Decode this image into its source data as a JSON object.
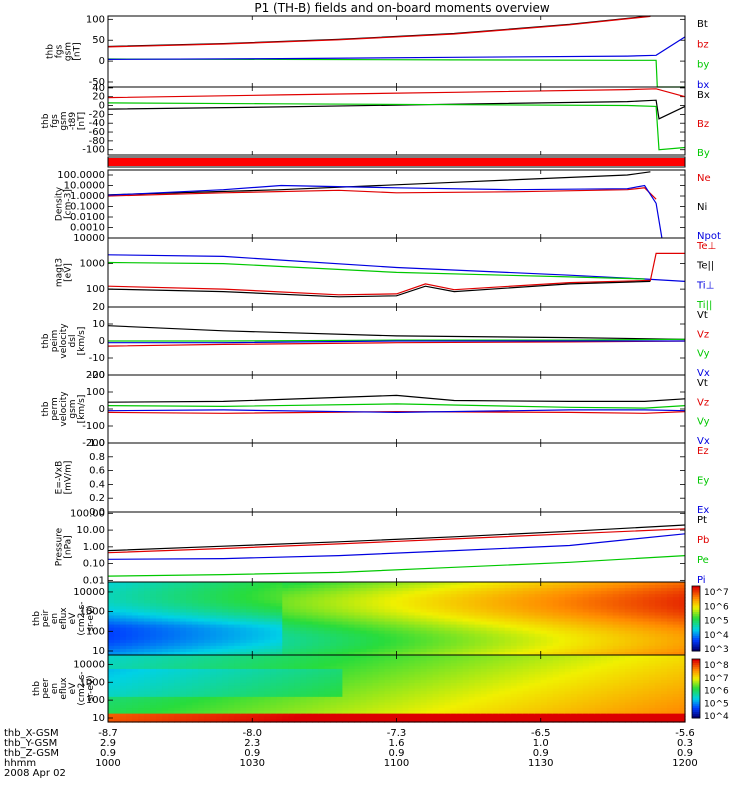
{
  "title": "P1 (TH-B) fields and on-board moments overview",
  "colors": {
    "black": "#000000",
    "red": "#e00000",
    "green": "#00c800",
    "blue": "#0000e0"
  },
  "chart_data": [
    {
      "type": "line",
      "ylabel": [
        "thb",
        "fgs",
        "gsm",
        "[nT]"
      ],
      "yticks": [
        100,
        50,
        0,
        -50
      ],
      "ylim": [
        -62,
        108
      ],
      "legend": [
        {
          "label": "Bt",
          "color": "black"
        },
        {
          "label": "bz",
          "color": "red"
        },
        {
          "label": "by",
          "color": "green"
        },
        {
          "label": "bx",
          "color": "blue"
        }
      ],
      "series": [
        {
          "name": "Bt",
          "color": "black",
          "x": [
            0,
            0.2,
            0.4,
            0.6,
            0.8,
            0.94
          ],
          "y": [
            35,
            42,
            52,
            66,
            88,
            108
          ]
        },
        {
          "name": "bz",
          "color": "red",
          "x": [
            0,
            0.2,
            0.4,
            0.6,
            0.8,
            0.94
          ],
          "y": [
            34,
            41,
            51,
            65,
            87,
            107
          ]
        },
        {
          "name": "by",
          "color": "green",
          "x": [
            0,
            0.3,
            0.6,
            0.9,
            0.95,
            0.952,
            1.0
          ],
          "y": [
            5,
            4,
            3,
            2,
            2,
            -62,
            -62
          ]
        },
        {
          "name": "bx",
          "color": "blue",
          "x": [
            0,
            0.3,
            0.6,
            0.9,
            0.95,
            1.0
          ],
          "y": [
            4,
            6,
            9,
            12,
            14,
            58
          ]
        }
      ]
    },
    {
      "type": "line",
      "ylabel": [
        "thb",
        "fgs",
        "gsm",
        "-t89",
        "[nT]"
      ],
      "yticks": [
        40,
        20,
        0,
        -20,
        -40,
        -60,
        -80,
        -100
      ],
      "ylim": [
        -112,
        42
      ],
      "legend": [
        {
          "label": "Bx",
          "color": "black"
        },
        {
          "label": "Bz",
          "color": "red"
        },
        {
          "label": "By",
          "color": "green"
        }
      ],
      "series": [
        {
          "name": "Bx",
          "color": "black",
          "x": [
            0,
            0.3,
            0.6,
            0.9,
            0.95,
            0.955,
            1.0
          ],
          "y": [
            -8,
            -3,
            3,
            9,
            12,
            -30,
            -2
          ]
        },
        {
          "name": "Bz",
          "color": "red",
          "x": [
            0,
            0.3,
            0.6,
            0.9,
            0.95,
            1.0
          ],
          "y": [
            18,
            24,
            30,
            36,
            38,
            20
          ]
        },
        {
          "name": "By",
          "color": "green",
          "x": [
            0,
            0.3,
            0.6,
            0.9,
            0.95,
            0.955,
            1.0
          ],
          "y": [
            6,
            4,
            2,
            0,
            -2,
            -100,
            -95
          ]
        }
      ]
    },
    {
      "type": "line",
      "ylabel": [
        "Density",
        "[cm-3]"
      ],
      "log": true,
      "yticks": [
        "100.0000",
        "10.0000",
        "1.0000",
        "0.1000",
        "0.0100",
        "0.0010"
      ],
      "ylim": [
        0.0001,
        300
      ],
      "legend": [
        {
          "label": "Ne",
          "color": "red"
        },
        {
          "label": "Ni",
          "color": "black"
        },
        {
          "label": "Npot",
          "color": "blue"
        }
      ],
      "series": [
        {
          "name": "Ni",
          "color": "black",
          "x": [
            0,
            0.3,
            0.6,
            0.9,
            0.94
          ],
          "y": [
            1.3,
            4,
            20,
            100,
            200
          ]
        },
        {
          "name": "Ne",
          "color": "red",
          "x": [
            0,
            0.2,
            0.4,
            0.5,
            0.7,
            0.9,
            0.93,
            0.95
          ],
          "y": [
            1.0,
            2.0,
            3.5,
            2.0,
            2.5,
            4.0,
            6.0,
            0.5
          ]
        },
        {
          "name": "Npot",
          "color": "blue",
          "x": [
            0,
            0.2,
            0.3,
            0.5,
            0.7,
            0.9,
            0.93,
            0.95,
            0.96
          ],
          "y": [
            1.2,
            4,
            10,
            6,
            4,
            5,
            10,
            0.2,
            0.0001
          ]
        }
      ]
    },
    {
      "type": "line",
      "ylabel": [
        "magt3",
        "[eV]"
      ],
      "log": true,
      "yticks": [
        "10000",
        "1000",
        "100"
      ],
      "ylim": [
        20,
        10000
      ],
      "legend": [
        {
          "label": "Te⊥",
          "color": "red"
        },
        {
          "label": "Te||",
          "color": "black"
        },
        {
          "label": "Ti⊥",
          "color": "blue"
        },
        {
          "label": "Ti||",
          "color": "green"
        }
      ],
      "series": [
        {
          "name": "Ti⊥",
          "color": "blue",
          "x": [
            0,
            0.2,
            0.5,
            0.8,
            0.93,
            1.0
          ],
          "y": [
            2200,
            1900,
            700,
            350,
            250,
            200
          ]
        },
        {
          "name": "Ti||",
          "color": "green",
          "x": [
            0,
            0.2,
            0.5,
            0.8,
            0.93
          ],
          "y": [
            1100,
            1000,
            450,
            300,
            250
          ]
        },
        {
          "name": "Te⊥",
          "color": "red",
          "x": [
            0,
            0.2,
            0.4,
            0.5,
            0.55,
            0.6,
            0.8,
            0.94,
            0.95,
            1.0
          ],
          "y": [
            130,
            100,
            60,
            65,
            160,
            95,
            180,
            220,
            2500,
            2500
          ]
        },
        {
          "name": "Te||",
          "color": "black",
          "x": [
            0,
            0.2,
            0.4,
            0.5,
            0.55,
            0.6,
            0.8,
            0.94
          ],
          "y": [
            100,
            80,
            50,
            55,
            130,
            80,
            160,
            200
          ]
        }
      ]
    },
    {
      "type": "line",
      "ylabel": [
        "thb",
        "peim",
        "velocity",
        "dsl",
        "[km/s]"
      ],
      "yticks": [
        20,
        10,
        0,
        -10,
        -20
      ],
      "ylim": [
        -20,
        20
      ],
      "legend": [
        {
          "label": "Vt",
          "color": "black"
        },
        {
          "label": "Vz",
          "color": "red"
        },
        {
          "label": "Vy",
          "color": "green"
        },
        {
          "label": "Vx",
          "color": "blue"
        }
      ],
      "series": [
        {
          "name": "Vt",
          "color": "black",
          "x": [
            0,
            0.2,
            0.5,
            0.8,
            1.0
          ],
          "y": [
            9,
            6,
            3,
            2,
            1
          ]
        },
        {
          "name": "Vz",
          "color": "red",
          "x": [
            0,
            0.2,
            0.5,
            0.8,
            1.0
          ],
          "y": [
            -3,
            -2,
            -1,
            -0.5,
            0
          ]
        },
        {
          "name": "Vy",
          "color": "green",
          "x": [
            0,
            0.2,
            0.5,
            0.8,
            1.0
          ],
          "y": [
            0,
            0,
            0.5,
            0.5,
            1
          ]
        },
        {
          "name": "Vx",
          "color": "blue",
          "x": [
            0,
            0.2,
            0.5,
            0.8,
            1.0
          ],
          "y": [
            -1,
            -1,
            0,
            0,
            0
          ]
        }
      ]
    },
    {
      "type": "line",
      "ylabel": [
        "thb",
        "perm",
        "velocity",
        "gsm",
        "[km/s]"
      ],
      "yticks": [
        200,
        100,
        0,
        -100,
        -200
      ],
      "ylim": [
        -200,
        200
      ],
      "legend": [
        {
          "label": "Vt",
          "color": "black"
        },
        {
          "label": "Vz",
          "color": "red"
        },
        {
          "label": "Vy",
          "color": "green"
        },
        {
          "label": "Vx",
          "color": "blue"
        }
      ],
      "series": [
        {
          "name": "Vt",
          "color": "black",
          "x": [
            0,
            0.2,
            0.5,
            0.6,
            0.8,
            0.93,
            1.0
          ],
          "y": [
            40,
            45,
            80,
            50,
            45,
            45,
            60
          ]
        },
        {
          "name": "Vz",
          "color": "red",
          "x": [
            0,
            0.2,
            0.5,
            0.8,
            0.93,
            1.0
          ],
          "y": [
            -20,
            -25,
            -15,
            -20,
            -25,
            -15
          ]
        },
        {
          "name": "Vy",
          "color": "green",
          "x": [
            0,
            0.2,
            0.5,
            0.8,
            0.93,
            1.0
          ],
          "y": [
            20,
            15,
            30,
            10,
            5,
            20
          ]
        },
        {
          "name": "Vx",
          "color": "blue",
          "x": [
            0,
            0.2,
            0.5,
            0.8,
            0.93,
            1.0
          ],
          "y": [
            -10,
            -5,
            -20,
            -5,
            -5,
            -10
          ]
        }
      ]
    },
    {
      "type": "line",
      "ylabel": [
        "E=-VxB",
        "[mV/m]"
      ],
      "yticks": [
        "1.0",
        "0.8",
        "0.6",
        "0.4",
        "0.2",
        "0.0"
      ],
      "ylim": [
        0,
        1
      ],
      "legend": [
        {
          "label": "Ez",
          "color": "red"
        },
        {
          "label": "Ey",
          "color": "green"
        },
        {
          "label": "Ex",
          "color": "blue"
        }
      ],
      "series": []
    },
    {
      "type": "line",
      "ylabel": [
        "Pressure",
        "[nPa]"
      ],
      "log": true,
      "yticks": [
        "100.00",
        "10.00",
        "1.00",
        "0.10",
        "0.01"
      ],
      "ylim": [
        0.008,
        120
      ],
      "legend": [
        {
          "label": "Pt",
          "color": "black"
        },
        {
          "label": "Pb",
          "color": "red"
        },
        {
          "label": "Pe",
          "color": "green"
        },
        {
          "label": "Pi",
          "color": "blue"
        }
      ],
      "series": [
        {
          "name": "Pt",
          "color": "black",
          "x": [
            0,
            0.2,
            0.4,
            0.6,
            0.8,
            1.0
          ],
          "y": [
            0.6,
            1.1,
            2.0,
            4.0,
            8.5,
            20
          ]
        },
        {
          "name": "Pb",
          "color": "red",
          "x": [
            0,
            0.2,
            0.4,
            0.6,
            0.8,
            1.0
          ],
          "y": [
            0.45,
            0.8,
            1.5,
            3.0,
            6.0,
            12
          ]
        },
        {
          "name": "Pe",
          "color": "green",
          "x": [
            0,
            0.2,
            0.4,
            0.6,
            0.8,
            1.0
          ],
          "y": [
            0.018,
            0.022,
            0.03,
            0.06,
            0.12,
            0.3
          ]
        },
        {
          "name": "Pi",
          "color": "blue",
          "x": [
            0,
            0.2,
            0.4,
            0.6,
            0.8,
            1.0
          ],
          "y": [
            0.18,
            0.2,
            0.3,
            0.6,
            1.2,
            6
          ]
        }
      ]
    },
    {
      "type": "heatmap",
      "ylabel": [
        "thb",
        "peir",
        "en",
        "eflux",
        "eV",
        "(cm2-s-",
        "sr-eV)"
      ],
      "yticks": [
        "10000",
        "1000",
        "100",
        "10"
      ],
      "colorbar": [
        "10^7",
        "10^6",
        "10^5",
        "10^4",
        "10^3"
      ]
    },
    {
      "type": "heatmap",
      "ylabel": [
        "thb",
        "peer",
        "en",
        "eflux",
        "eV",
        "(cm2-s-",
        "sr-eV)"
      ],
      "yticks": [
        "10000",
        "1000",
        "100",
        "10"
      ],
      "colorbar": [
        "10^8",
        "10^7",
        "10^6",
        "10^5",
        "10^4"
      ]
    }
  ],
  "xaxis": {
    "rows": [
      {
        "label": "thb_X-GSM",
        "values": [
          "-8.7",
          "-8.0",
          "-7.3",
          "-6.5",
          "-5.6"
        ]
      },
      {
        "label": "thb_Y-GSM",
        "values": [
          "2.9",
          "2.3",
          "1.6",
          "1.0",
          "0.3"
        ]
      },
      {
        "label": "thb_Z-GSM",
        "values": [
          "0.9",
          "0.9",
          "0.9",
          "0.9",
          "0.9"
        ]
      },
      {
        "label": "hhmm",
        "values": [
          "1000",
          "1030",
          "1100",
          "1130",
          "1200"
        ]
      }
    ],
    "date": "2008 Apr 02"
  }
}
